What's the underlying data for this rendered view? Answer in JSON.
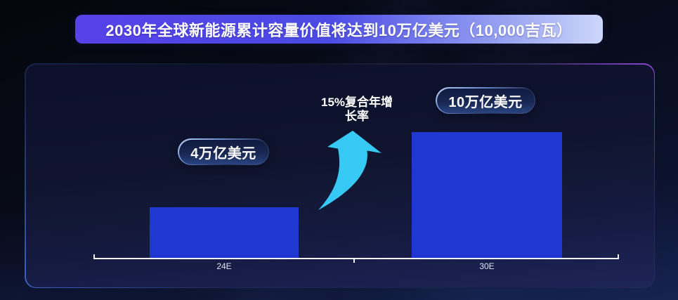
{
  "banner": {
    "title": "2030年全球新能源累计容量价值将达到10万亿美元（10,000吉瓦）"
  },
  "chart_data": {
    "type": "bar",
    "title": "2030年全球新能源累计容量价值将达到10万亿美元（10,000吉瓦）",
    "categories": [
      "24E",
      "30E"
    ],
    "values": [
      4,
      10
    ],
    "unit": "万亿美元",
    "value_labels": [
      "4万亿美元",
      "10万亿美元"
    ],
    "annotation": "15%复合年增长率",
    "annotation_lines": [
      "15%复合年增",
      "长率"
    ],
    "xlabel": "",
    "ylabel": "",
    "ylim": [
      0,
      10
    ],
    "grid": false,
    "legend": "none",
    "colors": {
      "bar": "#1e38d1",
      "arrow": "#35c9f3",
      "axis": "#f2f4fa",
      "banner_gradient_left": "#5742e8",
      "banner_gradient_right": "#cdd6fa",
      "panel_border_purple": "#8a46d0",
      "panel_border_blue": "#3e63c8",
      "panel_fill_top": "#0c102a",
      "panel_fill_bottom": "#1e2558"
    }
  }
}
